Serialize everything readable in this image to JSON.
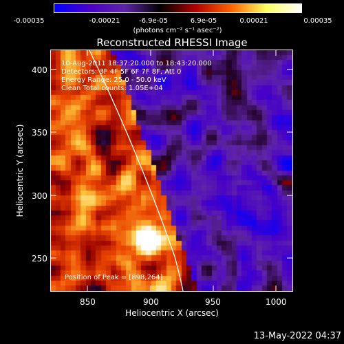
{
  "colorbar": {
    "ticks": [
      "-0.00035",
      "-0.00021",
      "-6.9e-05",
      "6.9e-05",
      "0.00021",
      "0.00035"
    ],
    "units": "(photons cm⁻² s⁻¹ asec⁻²)",
    "gradient": [
      "#0000ff",
      "#4a00c8",
      "#5e24a8",
      "#000000",
      "#b00000",
      "#ff6000",
      "#ffff60",
      "#ffffff"
    ]
  },
  "plot": {
    "title": "Reconstructed RHESSI Image",
    "xlabel": "Heliocentric X (arcsec)",
    "ylabel": "Heliocentric Y (arcsec)",
    "xticks": [
      "850",
      "900",
      "950",
      "1000"
    ],
    "yticks": [
      "400",
      "350",
      "300",
      "250"
    ],
    "info": {
      "time": "10-Aug-2011 18:37:20.000 to 18:43:20.000",
      "detectors": "Detectors: 3F 4F 5F 6F 7F 8F, Att 0",
      "energy": "Energy Range: 25.0 - 50.0 keV",
      "clean": "Clean      Total counts: 1.05E+04"
    },
    "peak": "Position of Peak = [898,264]",
    "limb_color": "#ffffff"
  },
  "footer": {
    "timestamp": "13-May-2022 04:37"
  }
}
